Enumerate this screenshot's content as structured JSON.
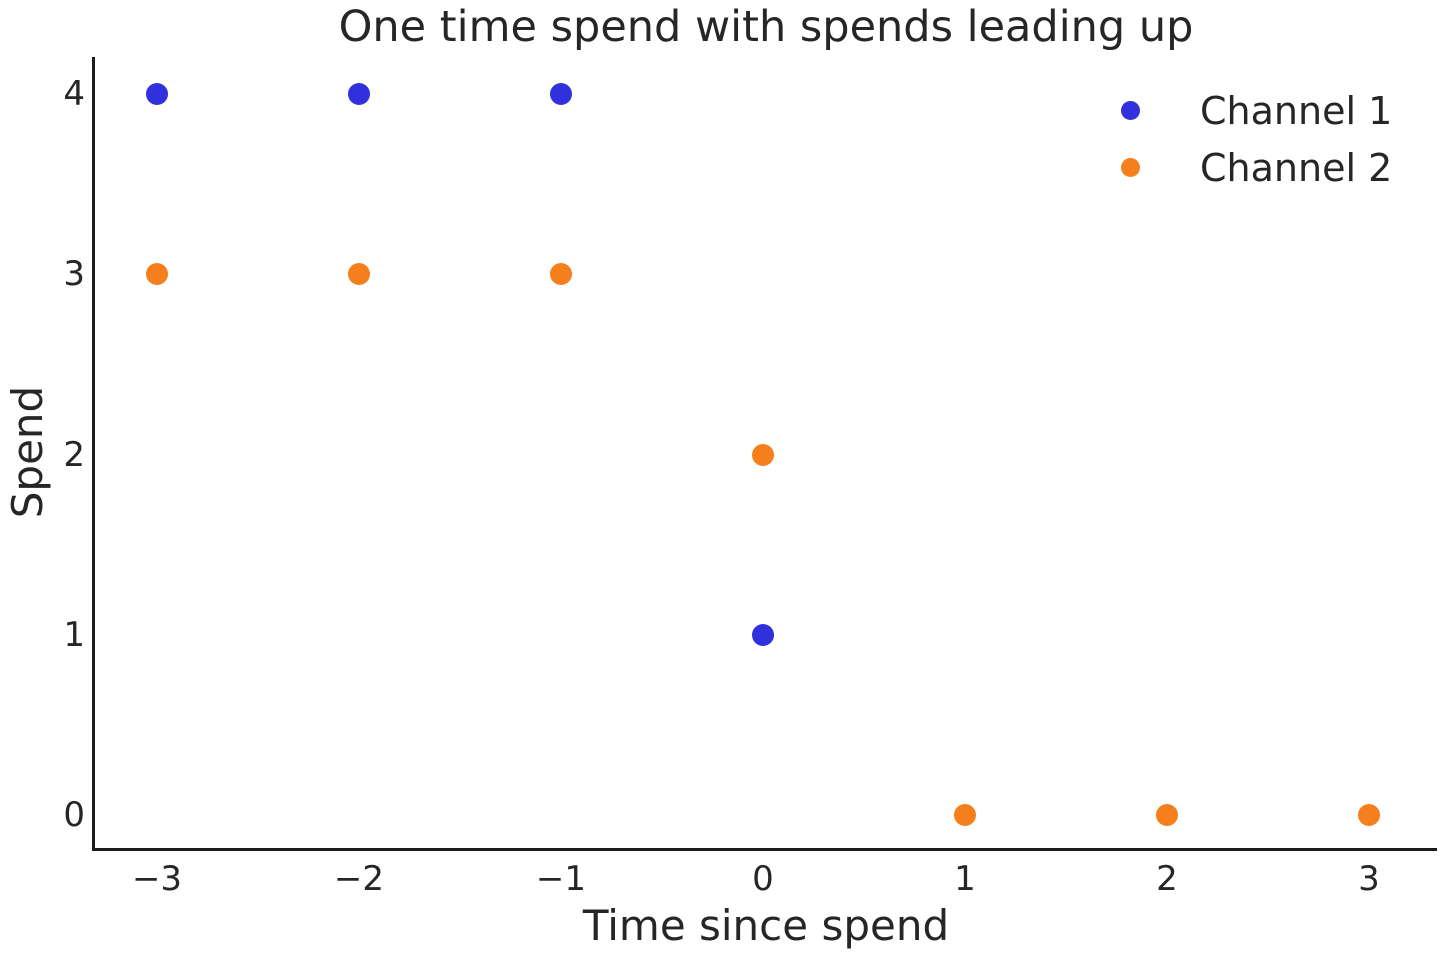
{
  "chart_data": {
    "type": "scatter",
    "title": "One time spend with spends leading up",
    "xlabel": "Time since spend",
    "ylabel": "Spend",
    "xlim": [
      -3.307,
      3.337
    ],
    "ylim": [
      -0.183,
      4.206
    ],
    "grid": false,
    "legend_position": "upper right",
    "legend_frame": false,
    "marker_diameter_px": 22,
    "x_ticks": [
      {
        "value": -3,
        "label": "−3"
      },
      {
        "value": -2,
        "label": "−2"
      },
      {
        "value": -1,
        "label": "−1"
      },
      {
        "value": 0,
        "label": "0"
      },
      {
        "value": 1,
        "label": "1"
      },
      {
        "value": 2,
        "label": "2"
      },
      {
        "value": 3,
        "label": "3"
      }
    ],
    "y_ticks": [
      {
        "value": 0,
        "label": "0"
      },
      {
        "value": 1,
        "label": "1"
      },
      {
        "value": 2,
        "label": "2"
      },
      {
        "value": 3,
        "label": "3"
      },
      {
        "value": 4,
        "label": "4"
      }
    ],
    "series": [
      {
        "name": "Channel 1",
        "color": "#3030dd",
        "marker": "circle",
        "points": [
          [
            -3,
            4
          ],
          [
            -2,
            4
          ],
          [
            -1,
            4
          ],
          [
            0,
            1
          ]
        ]
      },
      {
        "name": "Channel 2",
        "color": "#f57f1c",
        "marker": "circle",
        "points": [
          [
            -3,
            3
          ],
          [
            -2,
            3
          ],
          [
            -1,
            3
          ],
          [
            0,
            2
          ],
          [
            1,
            0
          ],
          [
            2,
            0
          ],
          [
            3,
            0
          ]
        ]
      }
    ],
    "colors": {
      "text": "#262626",
      "spine": "#1c1c1c",
      "background": "#ffffff"
    }
  }
}
